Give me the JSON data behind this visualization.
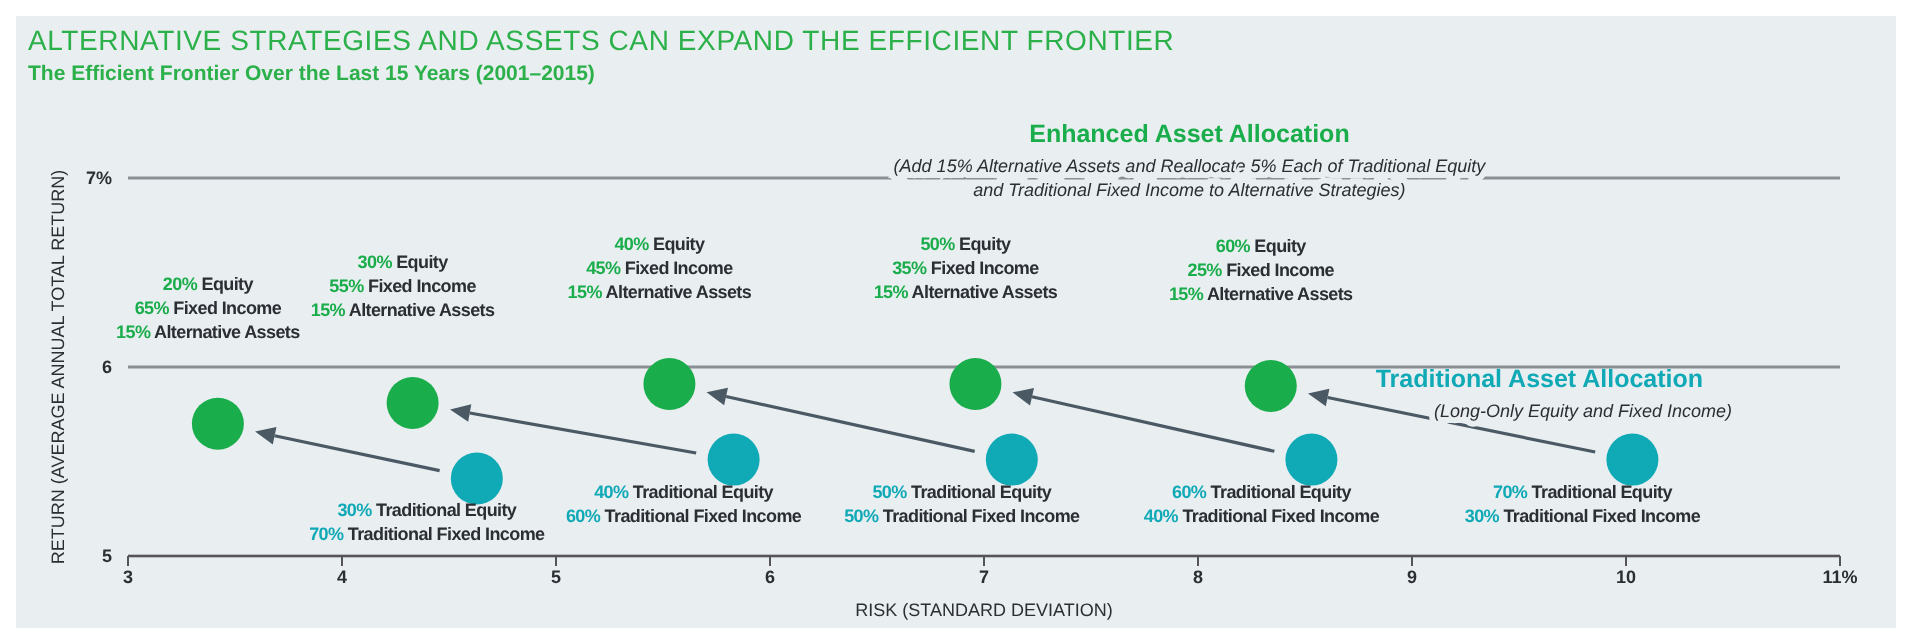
{
  "chart_data": {
    "type": "scatter",
    "title": "ALTERNATIVE STRATEGIES AND ASSETS CAN EXPAND THE EFFICIENT FRONTIER",
    "subtitle": "The Efficient Frontier Over the Last 15 Years (2001–2015)",
    "xlabel": "RISK (STANDARD DEVIATION)",
    "ylabel": "RETURN (AVERAGE ANNUAL TOTAL RETURN)",
    "series": [
      {
        "name": "Enhanced Asset Allocation",
        "color": "#1aad4b",
        "x": [
          3.42,
          4.33,
          5.53,
          6.96,
          8.34
        ],
        "values": [
          5.7,
          5.81,
          5.91,
          5.91,
          5.9
        ]
      },
      {
        "name": "Traditional Asset Allocation",
        "color": "#10a9b6",
        "x": [
          4.63,
          5.83,
          7.13,
          8.53,
          10.03
        ],
        "values": [
          5.41,
          5.51,
          5.51,
          5.51,
          5.51
        ]
      }
    ],
    "xlim": [
      3,
      11
    ],
    "xticks": [
      3,
      4,
      5,
      6,
      7,
      8,
      9,
      10,
      {
        "value": 11,
        "label": "11%"
      }
    ],
    "ylim": [
      5,
      7
    ],
    "yticks": [
      5,
      6,
      {
        "value": 7,
        "label": "7%"
      }
    ],
    "grid": "y",
    "marker": "circle",
    "annotations": [
      "(Add 15% Alternative Assets and Reallocate 5% Each of Traditional Equity\nand Traditional Fixed Income to Alternative Strategies)",
      "(Long-Only Equity and Fixed Income)",
      "20% Equity",
      "65% Fixed Income",
      "15% Alternative Assets",
      "30% Equity",
      "55% Fixed Income",
      "15% Alternative Assets",
      "40% Equity",
      "45% Fixed Income",
      "15% Alternative Assets",
      "50% Equity",
      "35% Fixed Income",
      "15% Alternative Assets",
      "60% Equity",
      "25% Fixed Income",
      "15% Alternative Assets",
      "30% Traditional Equity",
      "70% Traditional Fixed Income",
      "40% Traditional Equity",
      "60% Traditional Fixed Income",
      "50% Traditional Equity",
      "50% Traditional Fixed Income",
      "60% Traditional Equity",
      "40% Traditional Fixed Income",
      "70% Traditional Equity",
      "30% Traditional Fixed Income"
    ]
  }
}
